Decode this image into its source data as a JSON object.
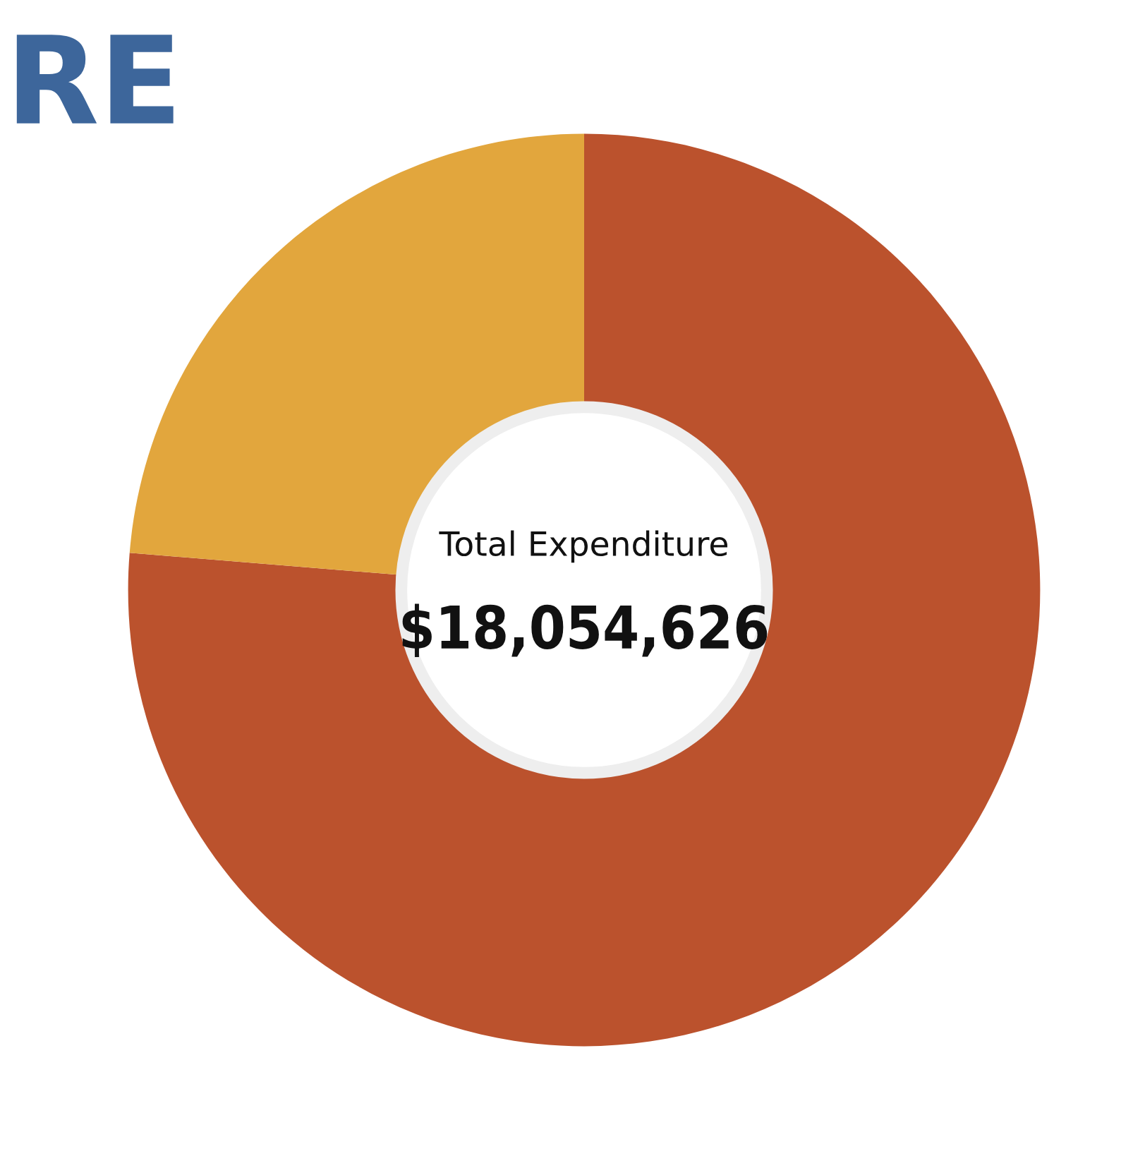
{
  "chart_data": {
    "type": "donut",
    "title": "RE",
    "categories": [
      null,
      null
    ],
    "values": [
      76.3,
      23.7
    ],
    "colors": [
      "#bb522d",
      "#e2a63d"
    ],
    "annotations": [
      "Total Expenditure",
      "$18,054,626"
    ]
  }
}
